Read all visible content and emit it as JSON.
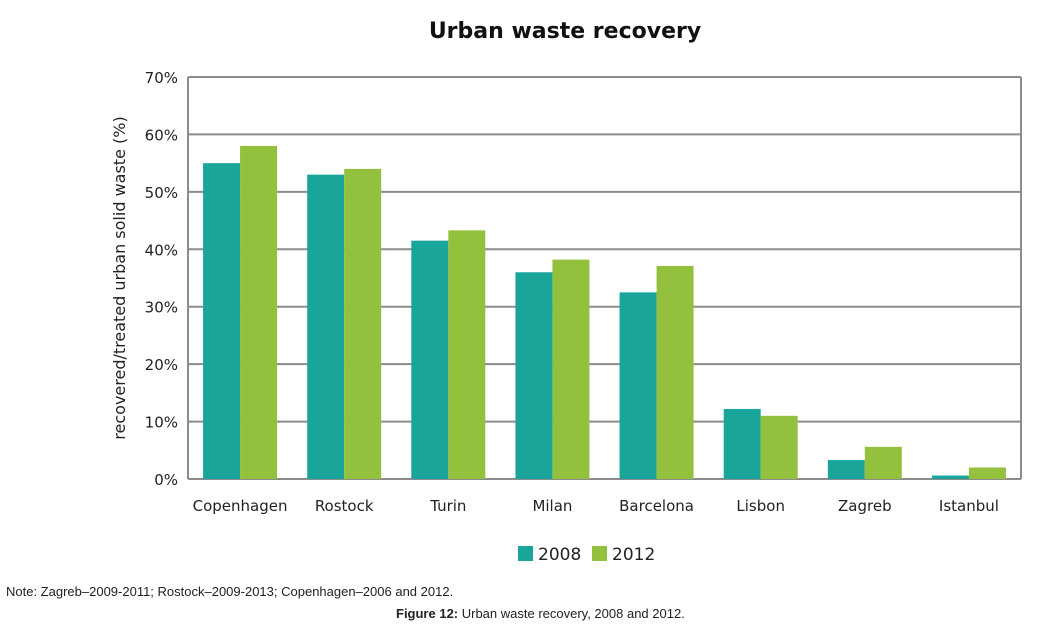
{
  "chart_data": {
    "type": "bar",
    "title": "Urban waste recovery",
    "ylabel": "recovered/treated urban solid waste (%)",
    "xlabel": "",
    "categories": [
      "Copenhagen",
      "Rostock",
      "Turin",
      "Milan",
      "Barcelona",
      "Lisbon",
      "Zagreb",
      "Istanbul"
    ],
    "series": [
      {
        "name": "2008",
        "color": "#1aa59b",
        "values": [
          55,
          53,
          41.5,
          36,
          32.5,
          12.2,
          3.3,
          0.6
        ]
      },
      {
        "name": "2012",
        "color": "#94c13d",
        "values": [
          58,
          54,
          43.3,
          38.2,
          37.1,
          11,
          5.6,
          2
        ]
      }
    ],
    "ylim": [
      0,
      70
    ],
    "yticks": [
      "0%",
      "10%",
      "20%",
      "30%",
      "40%",
      "50%",
      "60%",
      "70%"
    ],
    "grid": true,
    "legend_position": "bottom"
  },
  "note": "Note: Zagreb–2009-2011; Rostock–2009-2013; Copenhagen–2006 and 2012.",
  "caption": {
    "label": "Figure 12:",
    "text": " Urban waste recovery, 2008 and 2012."
  }
}
